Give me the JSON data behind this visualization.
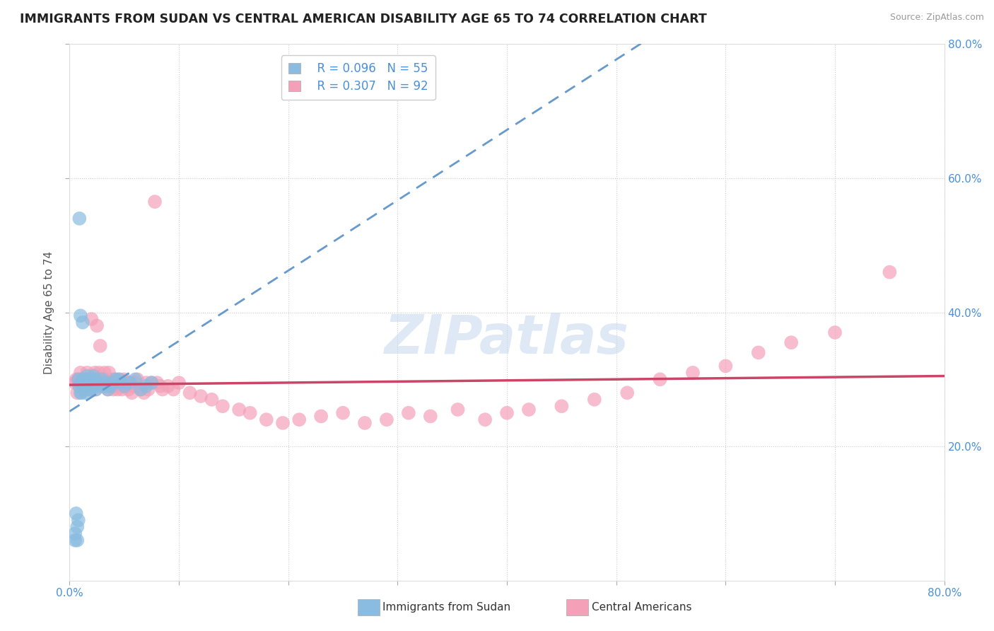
{
  "title": "IMMIGRANTS FROM SUDAN VS CENTRAL AMERICAN DISABILITY AGE 65 TO 74 CORRELATION CHART",
  "source": "Source: ZipAtlas.com",
  "ylabel": "Disability Age 65 to 74",
  "xlim": [
    0.0,
    0.8
  ],
  "ylim": [
    0.0,
    0.8
  ],
  "xticks": [
    0.0,
    0.1,
    0.2,
    0.3,
    0.4,
    0.5,
    0.6,
    0.7,
    0.8
  ],
  "yticks": [
    0.2,
    0.4,
    0.6,
    0.8
  ],
  "xtick_labels_shown": [
    "0.0%",
    "",
    "",
    "",
    "",
    "",
    "",
    "",
    "80.0%"
  ],
  "yticklabels": [
    "20.0%",
    "40.0%",
    "60.0%",
    "80.0%"
  ],
  "sudan_color": "#89bce0",
  "central_color": "#f4a0b8",
  "sudan_R": 0.096,
  "sudan_N": 55,
  "central_R": 0.307,
  "central_N": 92,
  "trend_sudan_color": "#6699cc",
  "trend_central_color": "#cc4466",
  "watermark": "ZIPatlas",
  "sudan_x": [
    0.005,
    0.005,
    0.006,
    0.007,
    0.007,
    0.008,
    0.008,
    0.009,
    0.009,
    0.01,
    0.01,
    0.01,
    0.011,
    0.011,
    0.012,
    0.012,
    0.013,
    0.013,
    0.014,
    0.014,
    0.015,
    0.015,
    0.016,
    0.016,
    0.017,
    0.017,
    0.018,
    0.018,
    0.019,
    0.02,
    0.02,
    0.021,
    0.022,
    0.022,
    0.023,
    0.024,
    0.025,
    0.025,
    0.027,
    0.028,
    0.03,
    0.032,
    0.033,
    0.035,
    0.038,
    0.04,
    0.042,
    0.045,
    0.048,
    0.05,
    0.055,
    0.06,
    0.065,
    0.07,
    0.075
  ],
  "sudan_y": [
    0.06,
    0.07,
    0.1,
    0.06,
    0.08,
    0.09,
    0.3,
    0.29,
    0.54,
    0.295,
    0.28,
    0.395,
    0.295,
    0.28,
    0.3,
    0.385,
    0.29,
    0.295,
    0.3,
    0.285,
    0.295,
    0.28,
    0.305,
    0.29,
    0.295,
    0.285,
    0.3,
    0.295,
    0.29,
    0.3,
    0.285,
    0.295,
    0.305,
    0.29,
    0.3,
    0.285,
    0.295,
    0.295,
    0.29,
    0.295,
    0.3,
    0.29,
    0.295,
    0.285,
    0.29,
    0.295,
    0.3,
    0.3,
    0.295,
    0.29,
    0.295,
    0.3,
    0.285,
    0.29,
    0.295
  ],
  "central_x": [
    0.005,
    0.006,
    0.007,
    0.008,
    0.009,
    0.01,
    0.01,
    0.012,
    0.013,
    0.014,
    0.015,
    0.016,
    0.017,
    0.018,
    0.019,
    0.02,
    0.021,
    0.022,
    0.023,
    0.024,
    0.025,
    0.026,
    0.027,
    0.028,
    0.03,
    0.031,
    0.032,
    0.033,
    0.034,
    0.035,
    0.036,
    0.037,
    0.038,
    0.04,
    0.041,
    0.042,
    0.043,
    0.044,
    0.045,
    0.046,
    0.047,
    0.048,
    0.05,
    0.052,
    0.053,
    0.054,
    0.055,
    0.057,
    0.058,
    0.06,
    0.062,
    0.065,
    0.068,
    0.07,
    0.072,
    0.075,
    0.078,
    0.08,
    0.083,
    0.085,
    0.09,
    0.095,
    0.1,
    0.11,
    0.12,
    0.13,
    0.14,
    0.155,
    0.165,
    0.18,
    0.195,
    0.21,
    0.23,
    0.25,
    0.27,
    0.29,
    0.31,
    0.33,
    0.355,
    0.38,
    0.4,
    0.42,
    0.45,
    0.48,
    0.51,
    0.54,
    0.57,
    0.6,
    0.63,
    0.66,
    0.7,
    0.75
  ],
  "central_y": [
    0.295,
    0.3,
    0.28,
    0.3,
    0.29,
    0.295,
    0.31,
    0.285,
    0.3,
    0.295,
    0.29,
    0.31,
    0.3,
    0.285,
    0.295,
    0.39,
    0.3,
    0.295,
    0.31,
    0.285,
    0.38,
    0.295,
    0.31,
    0.35,
    0.3,
    0.29,
    0.31,
    0.295,
    0.3,
    0.285,
    0.31,
    0.295,
    0.3,
    0.285,
    0.29,
    0.3,
    0.295,
    0.285,
    0.295,
    0.3,
    0.29,
    0.285,
    0.3,
    0.29,
    0.295,
    0.285,
    0.295,
    0.28,
    0.29,
    0.295,
    0.3,
    0.285,
    0.28,
    0.295,
    0.285,
    0.295,
    0.565,
    0.295,
    0.29,
    0.285,
    0.29,
    0.285,
    0.295,
    0.28,
    0.275,
    0.27,
    0.26,
    0.255,
    0.25,
    0.24,
    0.235,
    0.24,
    0.245,
    0.25,
    0.235,
    0.24,
    0.25,
    0.245,
    0.255,
    0.24,
    0.25,
    0.255,
    0.26,
    0.27,
    0.28,
    0.3,
    0.31,
    0.32,
    0.34,
    0.355,
    0.37,
    0.46
  ]
}
